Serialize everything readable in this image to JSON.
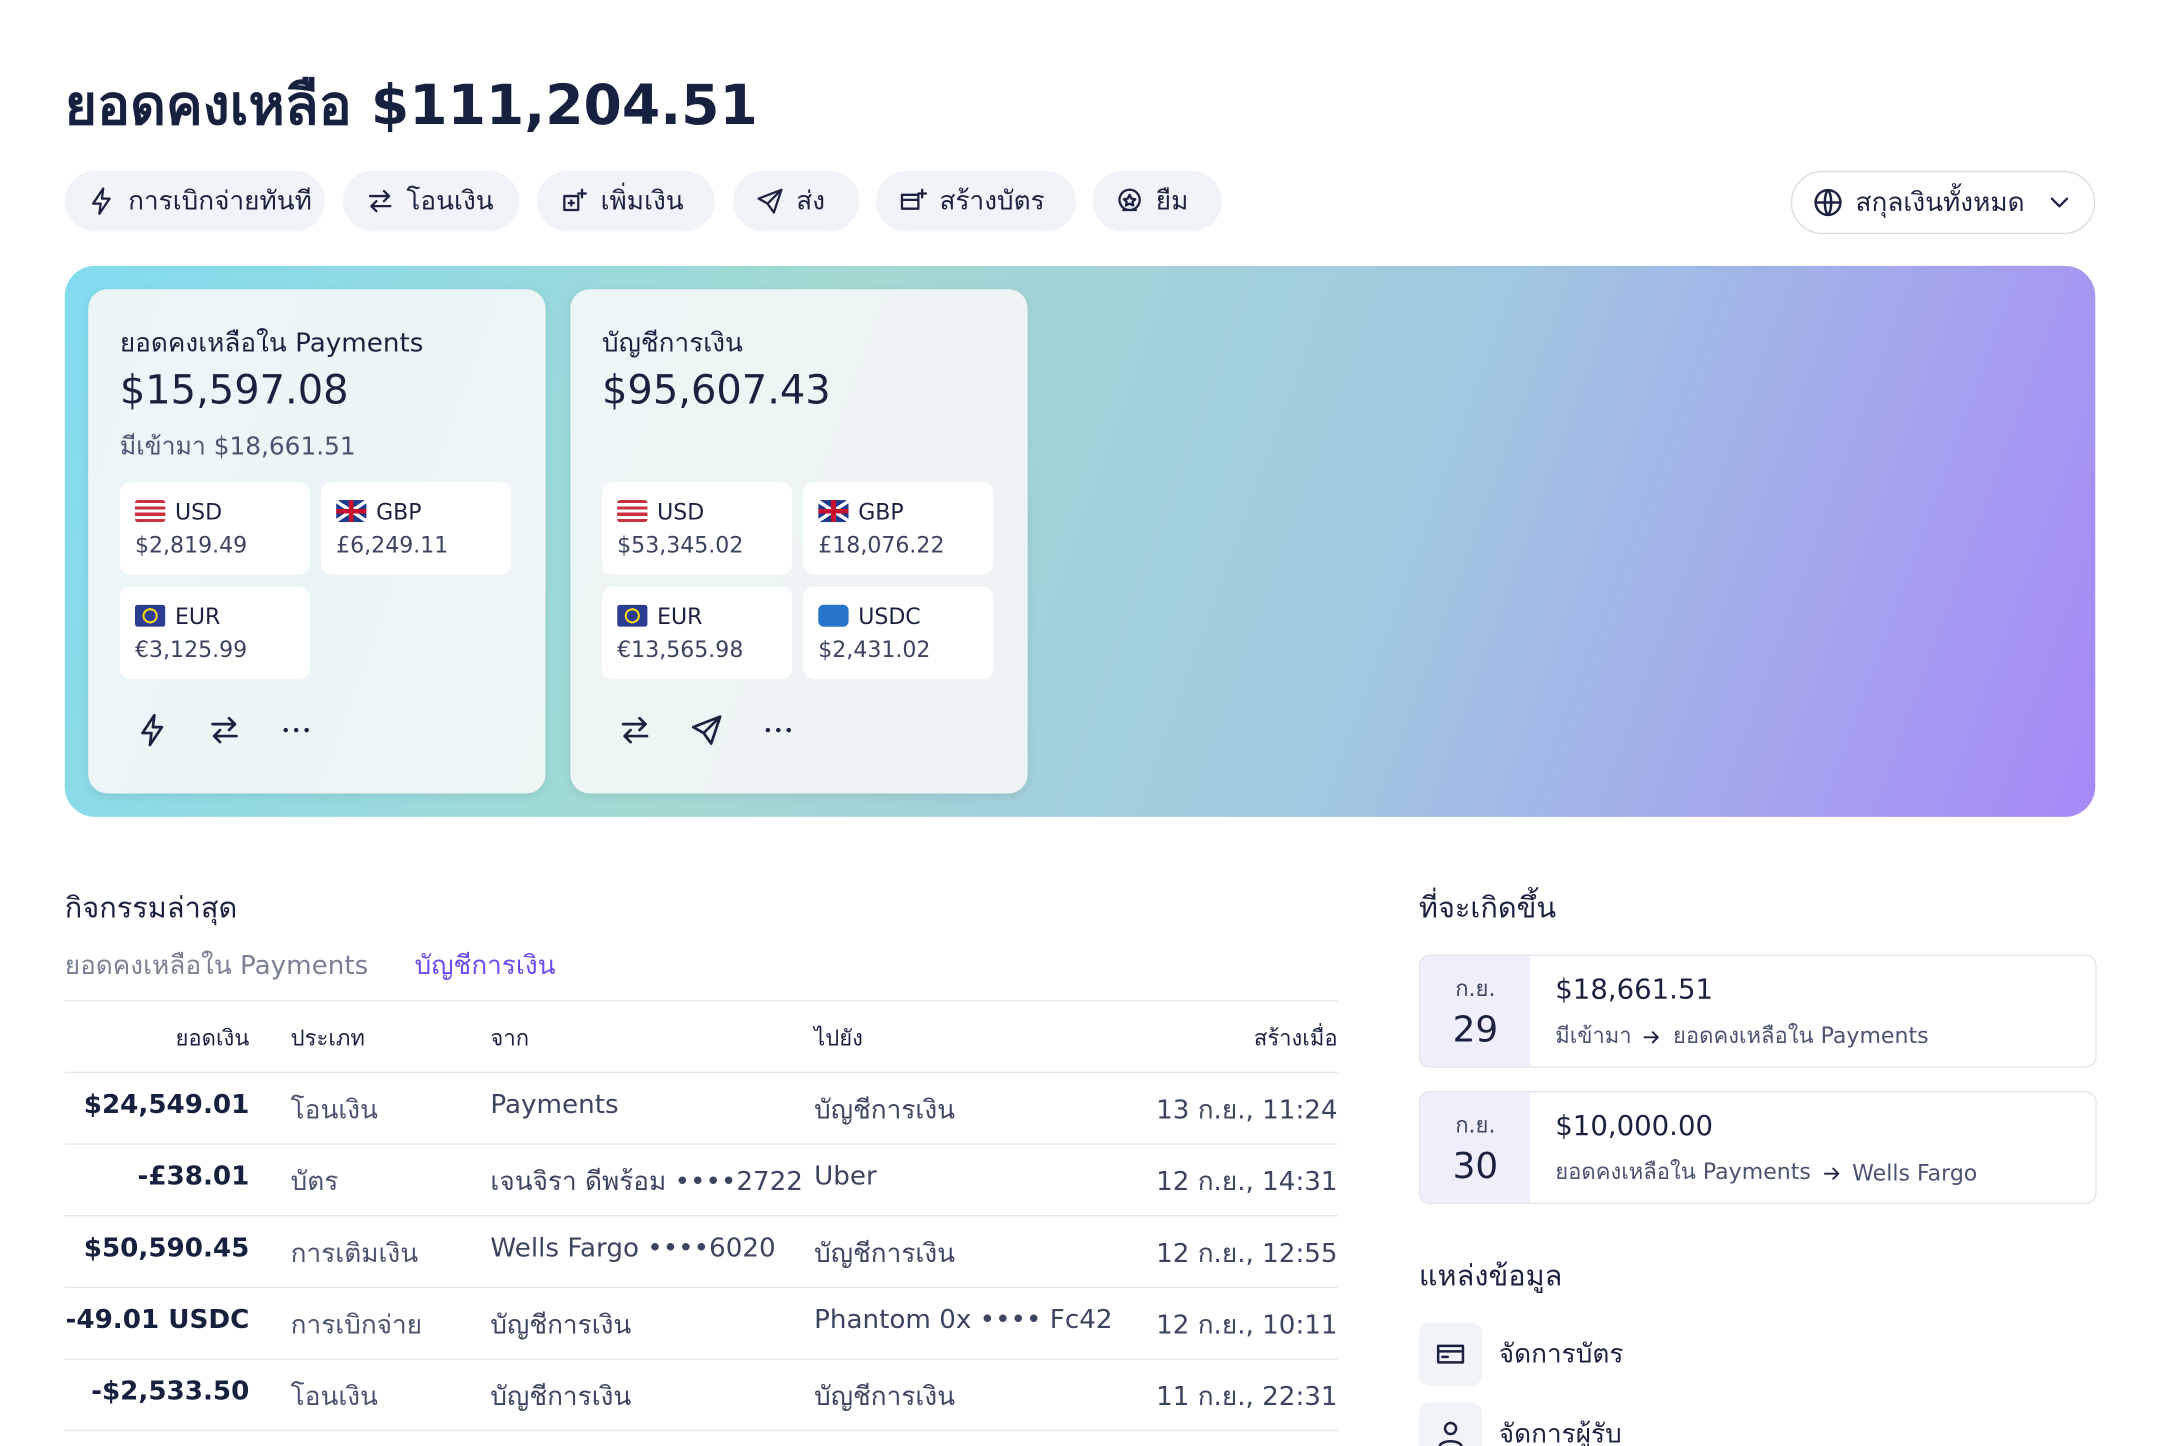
{
  "header": {
    "title": "ยอดคงเหลือ",
    "balance": "$111,204.51"
  },
  "actions": [
    "การเบิกจ่ายทันที",
    "โอนเงิน",
    "เพิ่มเงิน",
    "ส่ง",
    "สร้างบัตร",
    "ยืม"
  ],
  "currency_filter": "สกุลเงินทั้งหมด",
  "accounts": [
    {
      "title": "ยอดคงเหลือใน Payments",
      "amount": "$15,597.08",
      "incoming": "มีเข้ามา $18,661.51",
      "currencies": [
        {
          "code": "USD",
          "amount": "$2,819.49"
        },
        {
          "code": "GBP",
          "amount": "£6,249.11"
        },
        {
          "code": "EUR",
          "amount": "€3,125.99"
        }
      ]
    },
    {
      "title": "บัญชีการเงิน",
      "amount": "$95,607.43",
      "currencies": [
        {
          "code": "USD",
          "amount": "$53,345.02"
        },
        {
          "code": "GBP",
          "amount": "£18,076.22"
        },
        {
          "code": "EUR",
          "amount": "€13,565.98"
        },
        {
          "code": "USDC",
          "amount": "$2,431.02"
        }
      ]
    }
  ],
  "activity": {
    "title": "กิจกรรมล่าสุด",
    "tabs": [
      "ยอดคงเหลือใน Payments",
      "บัญชีการเงิน"
    ],
    "columns": [
      "ยอดเงิน",
      "ประเภท",
      "จาก",
      "ไปยัง",
      "สร้างเมื่อ"
    ],
    "rows": [
      [
        "$24,549.01",
        "โอนเงิน",
        "Payments",
        "บัญชีการเงิน",
        "13 ก.ย., 11:24"
      ],
      [
        "-£38.01",
        "บัตร",
        "เจนจิรา ดีพร้อม ••••2722",
        "Uber",
        "12 ก.ย., 14:31"
      ],
      [
        "$50,590.45",
        "การเติมเงิน",
        "Wells Fargo ••••6020",
        "บัญชีการเงิน",
        "12 ก.ย., 12:55"
      ],
      [
        "-49.01 USDC",
        "การเบิกจ่าย",
        "บัญชีการเงิน",
        "Phantom 0x •••• Fc42",
        "12 ก.ย., 10:11"
      ],
      [
        "-$2,533.50",
        "โอนเงิน",
        "บัญชีการเงิน",
        "บัญชีการเงิน",
        "11 ก.ย., 22:31"
      ]
    ]
  },
  "upcoming": {
    "title": "ที่จะเกิดขึ้น",
    "items": [
      {
        "month": "ก.ย.",
        "day": "29",
        "amount": "$18,661.51",
        "from": "มีเข้ามา",
        "to": "ยอดคงเหลือใน Payments"
      },
      {
        "month": "ก.ย.",
        "day": "30",
        "amount": "$10,000.00",
        "from": "ยอดคงเหลือใน Payments",
        "to": "Wells Fargo"
      }
    ]
  },
  "resources": {
    "title": "แหล่งข้อมูล",
    "items": [
      "จัดการบัตร",
      "จัดการผู้รับ"
    ]
  }
}
